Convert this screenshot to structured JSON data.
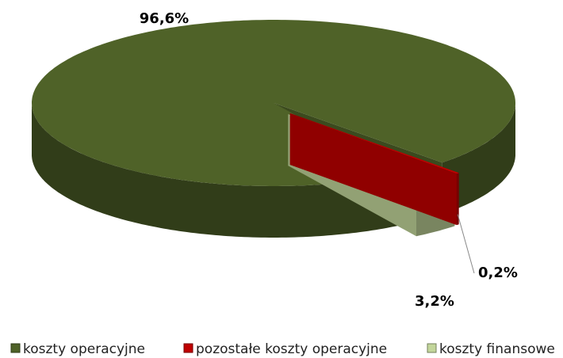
{
  "chart_data": {
    "type": "pie3d",
    "categories": [
      "koszty operacyjne",
      "pozostałe koszty operacyjne",
      "koszty finansowe"
    ],
    "values": [
      96.6,
      0.2,
      3.2
    ],
    "value_labels": [
      "96,6%",
      "0,2%",
      "3,2%"
    ],
    "colors": [
      "#4f6228",
      "#c00000",
      "#c3d69b"
    ],
    "legend": "bottom"
  }
}
